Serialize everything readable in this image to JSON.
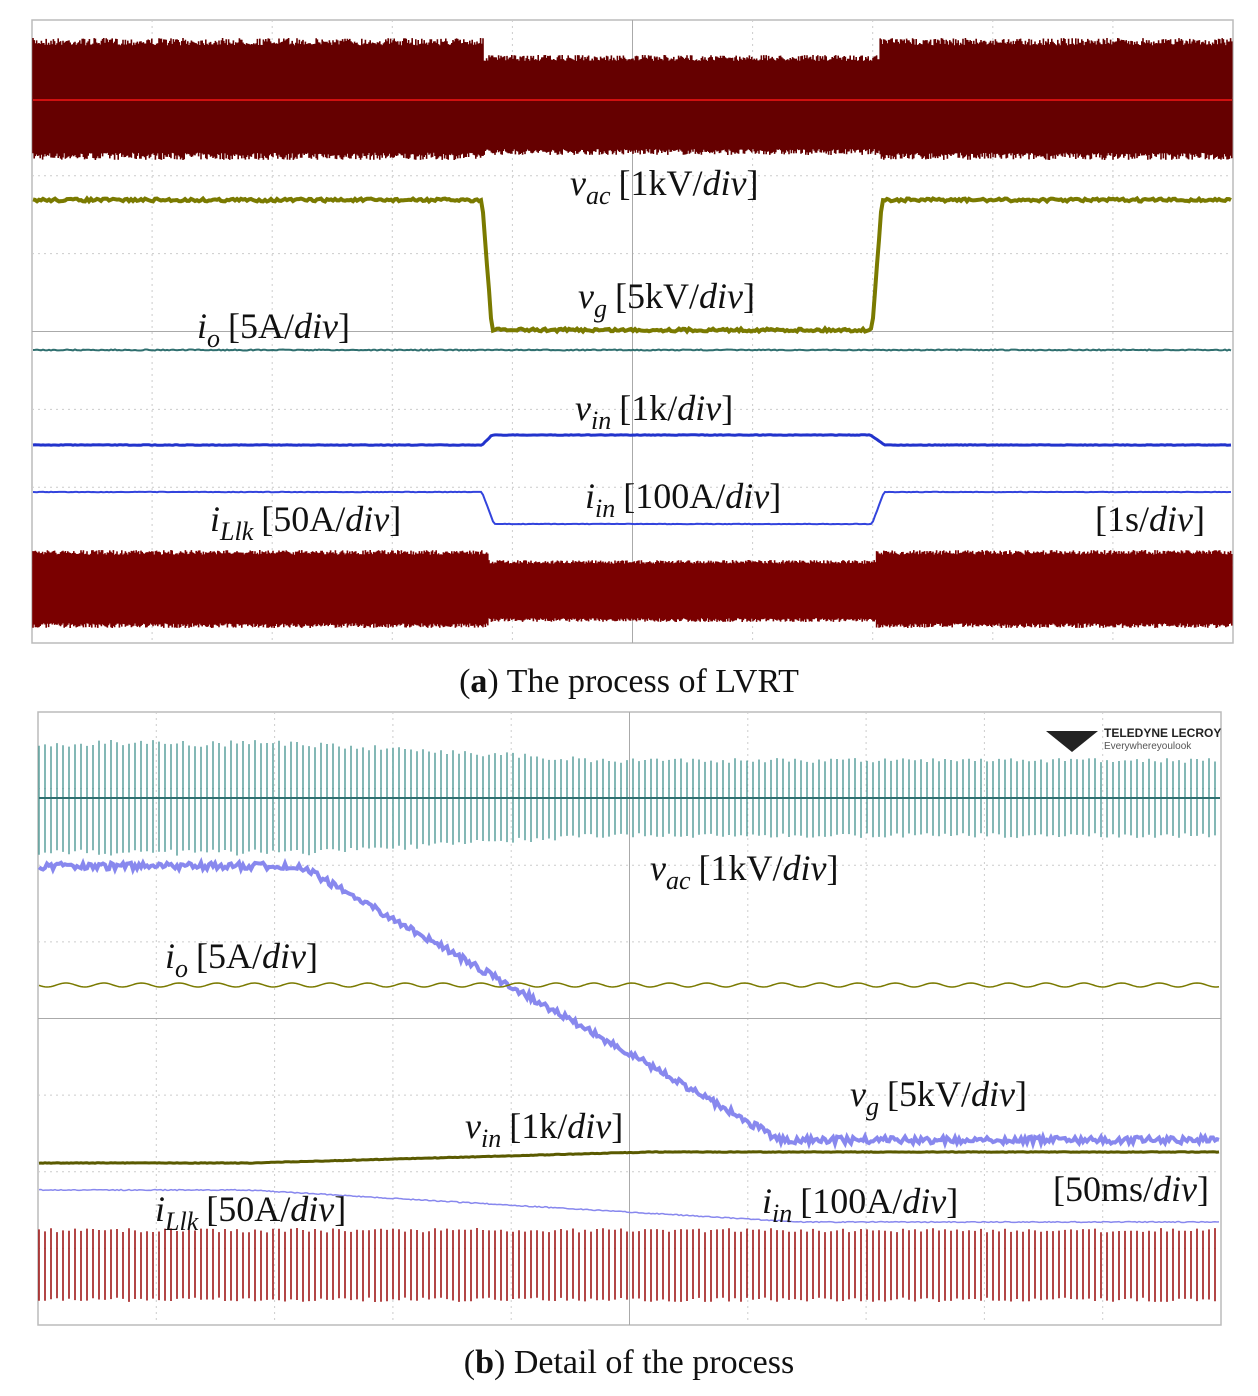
{
  "panels": [
    {
      "labels": [
        {
          "symbol": "v",
          "sub": "ac",
          "unit_open": "[1kV/",
          "unit_var": "div",
          "unit_close": "]"
        },
        {
          "symbol": "v",
          "sub": "g",
          "unit_open": "[5kV/",
          "unit_var": "div",
          "unit_close": "]"
        },
        {
          "symbol": "i",
          "sub": "o",
          "unit_open": "[5A/",
          "unit_var": "div",
          "unit_close": "]"
        },
        {
          "symbol": "v",
          "sub": "in",
          "unit_open": "[1k/",
          "unit_var": "div",
          "unit_close": "]"
        },
        {
          "symbol": "i",
          "sub": "in",
          "unit_open": "[100A/",
          "unit_var": "div",
          "unit_close": "]"
        },
        {
          "symbol": "i",
          "sub": "Llk",
          "unit_open": "[50A/",
          "unit_var": "div",
          "unit_close": "]"
        },
        {
          "symbol": "",
          "sub": "",
          "unit_open": "[1s/",
          "unit_var": "div",
          "unit_close": "]"
        }
      ],
      "caption": {
        "open": "(",
        "label": "a",
        "text": ") The process of LVRT"
      }
    },
    {
      "labels": [
        {
          "symbol": "v",
          "sub": "ac",
          "unit_open": "[1kV/",
          "unit_var": "div",
          "unit_close": "]"
        },
        {
          "symbol": "i",
          "sub": "o",
          "unit_open": "[5A/",
          "unit_var": "div",
          "unit_close": "]"
        },
        {
          "symbol": "v",
          "sub": "g",
          "unit_open": "[5kV/",
          "unit_var": "div",
          "unit_close": "]"
        },
        {
          "symbol": "v",
          "sub": "in",
          "unit_open": "[1k/",
          "unit_var": "div",
          "unit_close": "]"
        },
        {
          "symbol": "i",
          "sub": "Llk",
          "unit_open": "[50A/",
          "unit_var": "div",
          "unit_close": "]"
        },
        {
          "symbol": "i",
          "sub": "in",
          "unit_open": "[100A/",
          "unit_var": "div",
          "unit_close": "]"
        },
        {
          "symbol": "",
          "sub": "",
          "unit_open": "[50ms/",
          "unit_var": "div",
          "unit_close": "]"
        }
      ],
      "logo": {
        "brand": "TELEDYNE LECROY",
        "tagline": "Everywhereyoulook"
      },
      "caption": {
        "open": "(",
        "label": "b",
        "text": ") Detail of the process"
      }
    }
  ]
}
